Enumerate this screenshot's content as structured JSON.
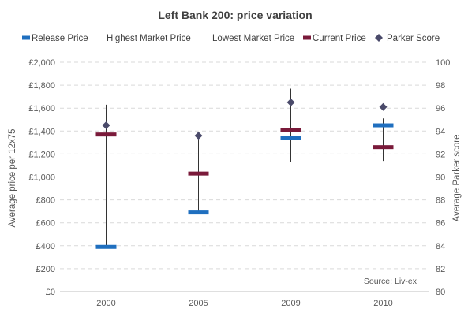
{
  "chart_data": {
    "type": "stock",
    "title": "Left Bank 200: price variation",
    "categories": [
      "2000",
      "2005",
      "2009",
      "2010"
    ],
    "ylabel": "Average price per 12x75",
    "y2label": "Average Parker score",
    "ylim": [
      0,
      2000
    ],
    "y2lim": [
      80,
      100
    ],
    "yticks": [
      "£0",
      "£200",
      "£400",
      "£600",
      "£800",
      "£1,000",
      "£1,200",
      "£1,400",
      "£1,600",
      "£1,800",
      "£2,000"
    ],
    "y2ticks": [
      "80",
      "82",
      "84",
      "86",
      "88",
      "90",
      "92",
      "94",
      "96",
      "98",
      "100"
    ],
    "grid": true,
    "legend_position": "top",
    "source": "Source: Liv-ex",
    "series": [
      {
        "name": "Release Price",
        "values": [
          390,
          690,
          1340,
          1450
        ],
        "color": "#1f6fbf",
        "marker": "bar"
      },
      {
        "name": "Highest Market Price",
        "values": [
          1630,
          1370,
          1770,
          1510
        ],
        "color": "#333333",
        "marker": "none"
      },
      {
        "name": "Lowest Market Price",
        "values": [
          390,
          690,
          1130,
          1140
        ],
        "color": "#333333",
        "marker": "none"
      },
      {
        "name": "Current Price",
        "values": [
          1370,
          1030,
          1410,
          1260
        ],
        "color": "#7a1a3a",
        "marker": "bar"
      },
      {
        "name": "Parker Score",
        "values": [
          94.5,
          93.6,
          96.5,
          96.1
        ],
        "color": "#4a4a6a",
        "marker": "diamond",
        "axis": "y2"
      }
    ]
  }
}
